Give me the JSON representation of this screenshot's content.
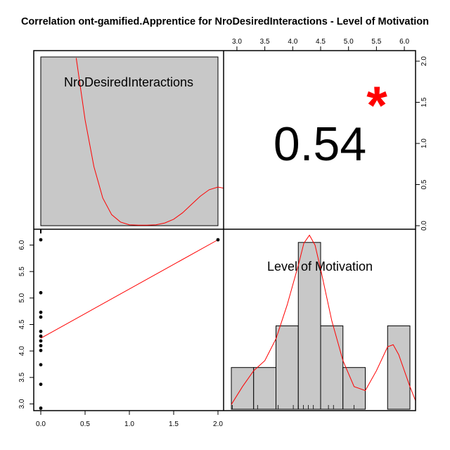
{
  "chart_data": {
    "type": "scatter",
    "title": "Correlation ont-gamified.Apprentice for NroDesiredInteractions - Level of Motivation",
    "variables": [
      "NroDesiredInteractions",
      "Level of Motivation"
    ],
    "correlation": {
      "value": 0.54,
      "label": "0.54",
      "significance": "*"
    },
    "axes": {
      "bottom_x": {
        "range": [
          0,
          2
        ],
        "ticks": [
          0.0,
          0.5,
          1.0,
          1.5,
          2.0
        ],
        "labels": [
          "0.0",
          "0.5",
          "1.0",
          "1.5",
          "2.0"
        ]
      },
      "left_y": {
        "range": [
          2.9,
          6.1
        ],
        "ticks": [
          3.0,
          3.5,
          4.0,
          4.5,
          5.0,
          5.5,
          6.0
        ],
        "labels": [
          "3.0",
          "3.5",
          "4.0",
          "4.5",
          "5.0",
          "5.5",
          "6.0"
        ]
      },
      "top_x": {
        "range": [
          2.9,
          6.1
        ],
        "ticks": [
          3.0,
          3.5,
          4.0,
          4.5,
          5.0,
          5.5,
          6.0
        ],
        "labels": [
          "3.0",
          "3.5",
          "4.0",
          "4.5",
          "5.0",
          "5.5",
          "6.0"
        ]
      },
      "right_y": {
        "range": [
          0,
          2
        ],
        "ticks": [
          0.0,
          0.5,
          1.0,
          1.5,
          2.0
        ],
        "labels": [
          "0.0",
          "0.5",
          "1.0",
          "1.5",
          "2.0"
        ]
      }
    },
    "scatter": {
      "points": [
        {
          "x": 0,
          "y": 6.1
        },
        {
          "x": 0,
          "y": 5.1
        },
        {
          "x": 0,
          "y": 4.73
        },
        {
          "x": 0,
          "y": 4.64
        },
        {
          "x": 0,
          "y": 4.37
        },
        {
          "x": 0,
          "y": 4.28
        },
        {
          "x": 0,
          "y": 4.19
        },
        {
          "x": 0,
          "y": 4.1
        },
        {
          "x": 0,
          "y": 4.01
        },
        {
          "x": 0,
          "y": 3.74
        },
        {
          "x": 0,
          "y": 3.37
        },
        {
          "x": 0,
          "y": 2.92
        },
        {
          "x": 2,
          "y": 6.1
        }
      ],
      "fit_line": {
        "x": [
          0,
          2
        ],
        "y": [
          4.24,
          6.1
        ]
      }
    },
    "histogram_nro": {
      "bins": [
        {
          "from": 0,
          "to": 2,
          "density": 1.0
        }
      ],
      "density_curve": {
        "x": [
          0.4,
          0.5,
          0.6,
          0.7,
          0.8,
          0.9,
          1.0,
          1.1,
          1.2,
          1.3,
          1.4,
          1.5,
          1.6,
          1.7,
          1.8,
          1.9,
          2.0,
          2.1,
          2.2
        ],
        "y": [
          1.82,
          1.15,
          0.64,
          0.3,
          0.12,
          0.04,
          0.01,
          0.005,
          0.005,
          0.01,
          0.03,
          0.07,
          0.14,
          0.23,
          0.32,
          0.39,
          0.42,
          0.4,
          0.35
        ]
      }
    },
    "histogram_motivation": {
      "bins": [
        {
          "from": 2.9,
          "to": 3.3,
          "count": 1
        },
        {
          "from": 3.3,
          "to": 3.7,
          "count": 1
        },
        {
          "from": 3.7,
          "to": 4.1,
          "count": 2
        },
        {
          "from": 4.1,
          "to": 4.5,
          "count": 4
        },
        {
          "from": 4.5,
          "to": 4.9,
          "count": 2
        },
        {
          "from": 4.9,
          "to": 5.3,
          "count": 1
        },
        {
          "from": 5.3,
          "to": 5.7,
          "count": 0
        },
        {
          "from": 5.7,
          "to": 6.1,
          "count": 2
        }
      ],
      "rug": [
        2.92,
        3.37,
        3.74,
        4.01,
        4.1,
        4.19,
        4.28,
        4.37,
        4.64,
        4.73,
        5.1,
        6.1
      ],
      "density_curve": {
        "x": [
          2.9,
          3.1,
          3.3,
          3.5,
          3.7,
          3.9,
          4.1,
          4.2,
          4.3,
          4.4,
          4.5,
          4.7,
          4.9,
          5.1,
          5.3,
          5.5,
          5.7,
          5.8,
          5.9,
          6.1,
          6.2
        ],
        "y": [
          0.1,
          0.55,
          0.95,
          1.2,
          1.75,
          2.6,
          3.6,
          4.15,
          4.35,
          4.1,
          3.5,
          2.2,
          1.2,
          0.55,
          0.45,
          0.95,
          1.55,
          1.6,
          1.35,
          0.55,
          0.2
        ]
      }
    }
  }
}
